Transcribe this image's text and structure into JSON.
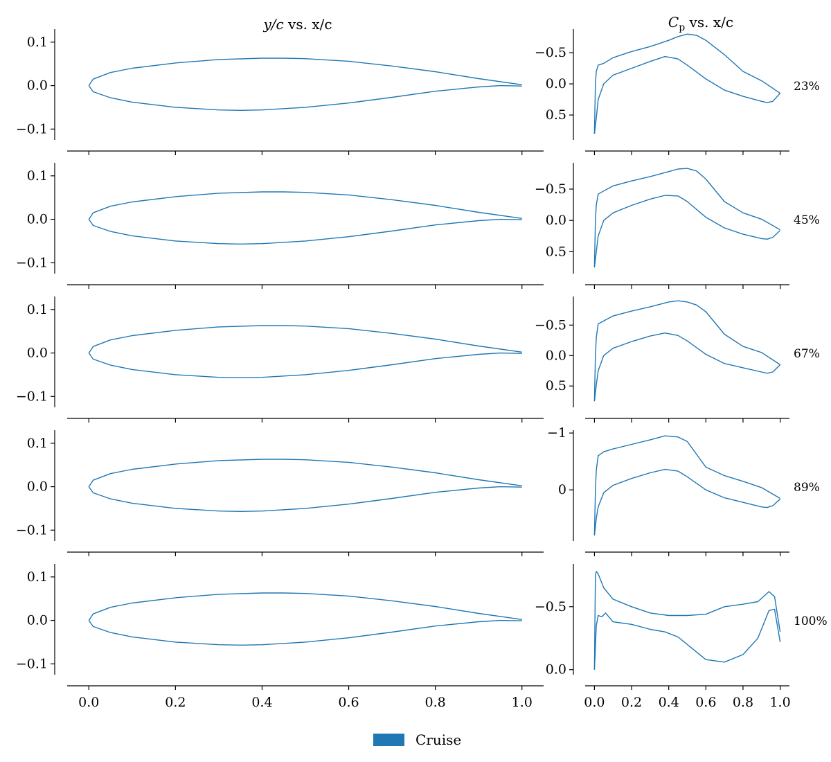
{
  "chart_data": {
    "type": "line",
    "columns": [
      {
        "title_main": "y/c",
        "title_rest": " vs. x/c"
      },
      {
        "title_main": "C",
        "title_sub": "p",
        "title_rest": " vs. x/c"
      }
    ],
    "legend": {
      "label": "Cruise",
      "color": "#1f77b4"
    },
    "line_color": "#1f77b4",
    "x_ticks": [
      0.0,
      0.2,
      0.4,
      0.6,
      0.8,
      1.0
    ],
    "x_tick_labels": [
      "0.0",
      "0.2",
      "0.4",
      "0.6",
      "0.8",
      "1.0"
    ],
    "x_range": [
      -0.05,
      1.05
    ],
    "airfoil": {
      "y_range": [
        -0.125,
        0.13
      ],
      "y_ticks": [
        0.1,
        0.0,
        -0.1
      ],
      "y_tick_labels": [
        "0.1",
        "0.0",
        "−0.1"
      ],
      "upper": [
        [
          0.0,
          0.0
        ],
        [
          0.01,
          0.015
        ],
        [
          0.05,
          0.03
        ],
        [
          0.1,
          0.04
        ],
        [
          0.2,
          0.052
        ],
        [
          0.3,
          0.06
        ],
        [
          0.4,
          0.063
        ],
        [
          0.45,
          0.063
        ],
        [
          0.5,
          0.062
        ],
        [
          0.6,
          0.056
        ],
        [
          0.7,
          0.045
        ],
        [
          0.8,
          0.032
        ],
        [
          0.9,
          0.016
        ],
        [
          1.0,
          0.002
        ]
      ],
      "lower": [
        [
          0.0,
          0.0
        ],
        [
          0.01,
          -0.014
        ],
        [
          0.05,
          -0.028
        ],
        [
          0.1,
          -0.038
        ],
        [
          0.2,
          -0.05
        ],
        [
          0.3,
          -0.056
        ],
        [
          0.35,
          -0.057
        ],
        [
          0.4,
          -0.056
        ],
        [
          0.5,
          -0.05
        ],
        [
          0.6,
          -0.04
        ],
        [
          0.7,
          -0.027
        ],
        [
          0.8,
          -0.013
        ],
        [
          0.9,
          -0.003
        ],
        [
          0.95,
          0.0
        ],
        [
          1.0,
          -0.001
        ]
      ]
    },
    "rows": [
      {
        "span_label": "23%",
        "cp_range": [
          0.9,
          -0.88
        ],
        "cp_ticks": [
          -0.5,
          0.0,
          0.5
        ],
        "cp_tick_labels": [
          "−0.5",
          "0.0",
          "0.5"
        ],
        "upper": [
          [
            0.0,
            0.8
          ],
          [
            0.005,
            0.0
          ],
          [
            0.01,
            -0.2
          ],
          [
            0.02,
            -0.3
          ],
          [
            0.05,
            -0.33
          ],
          [
            0.1,
            -0.42
          ],
          [
            0.2,
            -0.52
          ],
          [
            0.3,
            -0.6
          ],
          [
            0.4,
            -0.7
          ],
          [
            0.45,
            -0.76
          ],
          [
            0.5,
            -0.8
          ],
          [
            0.55,
            -0.78
          ],
          [
            0.6,
            -0.7
          ],
          [
            0.7,
            -0.47
          ],
          [
            0.8,
            -0.2
          ],
          [
            0.9,
            -0.05
          ],
          [
            1.0,
            0.15
          ]
        ],
        "lower": [
          [
            0.0,
            0.8
          ],
          [
            0.01,
            0.55
          ],
          [
            0.02,
            0.25
          ],
          [
            0.05,
            0.0
          ],
          [
            0.1,
            -0.14
          ],
          [
            0.2,
            -0.25
          ],
          [
            0.3,
            -0.36
          ],
          [
            0.38,
            -0.44
          ],
          [
            0.45,
            -0.4
          ],
          [
            0.5,
            -0.3
          ],
          [
            0.6,
            -0.08
          ],
          [
            0.7,
            0.1
          ],
          [
            0.8,
            0.2
          ],
          [
            0.9,
            0.28
          ],
          [
            0.93,
            0.3
          ],
          [
            0.96,
            0.28
          ],
          [
            1.0,
            0.15
          ]
        ]
      },
      {
        "span_label": "45%",
        "cp_range": [
          0.85,
          -0.92
        ],
        "cp_ticks": [
          -0.5,
          0.0,
          0.5
        ],
        "cp_tick_labels": [
          "−0.5",
          "0.0",
          "0.5"
        ],
        "upper": [
          [
            0.0,
            0.75
          ],
          [
            0.005,
            0.0
          ],
          [
            0.01,
            -0.25
          ],
          [
            0.02,
            -0.42
          ],
          [
            0.05,
            -0.47
          ],
          [
            0.1,
            -0.55
          ],
          [
            0.2,
            -0.63
          ],
          [
            0.3,
            -0.7
          ],
          [
            0.4,
            -0.78
          ],
          [
            0.45,
            -0.82
          ],
          [
            0.5,
            -0.83
          ],
          [
            0.55,
            -0.79
          ],
          [
            0.6,
            -0.66
          ],
          [
            0.7,
            -0.3
          ],
          [
            0.8,
            -0.12
          ],
          [
            0.9,
            -0.02
          ],
          [
            1.0,
            0.15
          ]
        ],
        "lower": [
          [
            0.0,
            0.75
          ],
          [
            0.01,
            0.5
          ],
          [
            0.02,
            0.25
          ],
          [
            0.05,
            0.0
          ],
          [
            0.1,
            -0.12
          ],
          [
            0.2,
            -0.24
          ],
          [
            0.3,
            -0.34
          ],
          [
            0.38,
            -0.4
          ],
          [
            0.45,
            -0.39
          ],
          [
            0.5,
            -0.3
          ],
          [
            0.6,
            -0.05
          ],
          [
            0.7,
            0.12
          ],
          [
            0.8,
            0.22
          ],
          [
            0.9,
            0.29
          ],
          [
            0.93,
            0.3
          ],
          [
            0.96,
            0.27
          ],
          [
            1.0,
            0.16
          ]
        ]
      },
      {
        "span_label": "67%",
        "cp_range": [
          0.85,
          -0.97
        ],
        "cp_ticks": [
          -0.5,
          0.0,
          0.5
        ],
        "cp_tick_labels": [
          "−0.5",
          "0.0",
          "0.5"
        ],
        "upper": [
          [
            0.0,
            0.75
          ],
          [
            0.005,
            0.0
          ],
          [
            0.01,
            -0.3
          ],
          [
            0.02,
            -0.52
          ],
          [
            0.05,
            -0.57
          ],
          [
            0.1,
            -0.65
          ],
          [
            0.2,
            -0.73
          ],
          [
            0.3,
            -0.8
          ],
          [
            0.4,
            -0.88
          ],
          [
            0.45,
            -0.9
          ],
          [
            0.5,
            -0.88
          ],
          [
            0.55,
            -0.83
          ],
          [
            0.6,
            -0.72
          ],
          [
            0.7,
            -0.35
          ],
          [
            0.8,
            -0.15
          ],
          [
            0.9,
            -0.05
          ],
          [
            1.0,
            0.15
          ]
        ],
        "lower": [
          [
            0.0,
            0.75
          ],
          [
            0.01,
            0.48
          ],
          [
            0.02,
            0.25
          ],
          [
            0.05,
            0.0
          ],
          [
            0.1,
            -0.12
          ],
          [
            0.2,
            -0.23
          ],
          [
            0.3,
            -0.32
          ],
          [
            0.38,
            -0.37
          ],
          [
            0.45,
            -0.33
          ],
          [
            0.5,
            -0.24
          ],
          [
            0.6,
            -0.02
          ],
          [
            0.7,
            0.13
          ],
          [
            0.8,
            0.2
          ],
          [
            0.9,
            0.27
          ],
          [
            0.93,
            0.29
          ],
          [
            0.96,
            0.27
          ],
          [
            1.0,
            0.15
          ]
        ]
      },
      {
        "span_label": "89%",
        "cp_range": [
          0.9,
          -1.05
        ],
        "cp_ticks": [
          -1,
          0
        ],
        "cp_tick_labels": [
          "−1",
          "0"
        ],
        "upper": [
          [
            0.0,
            0.8
          ],
          [
            0.005,
            0.0
          ],
          [
            0.01,
            -0.35
          ],
          [
            0.02,
            -0.6
          ],
          [
            0.05,
            -0.67
          ],
          [
            0.1,
            -0.72
          ],
          [
            0.2,
            -0.8
          ],
          [
            0.3,
            -0.88
          ],
          [
            0.38,
            -0.95
          ],
          [
            0.45,
            -0.93
          ],
          [
            0.5,
            -0.85
          ],
          [
            0.6,
            -0.4
          ],
          [
            0.7,
            -0.25
          ],
          [
            0.8,
            -0.15
          ],
          [
            0.9,
            -0.04
          ],
          [
            1.0,
            0.15
          ]
        ],
        "lower": [
          [
            0.0,
            0.8
          ],
          [
            0.01,
            0.5
          ],
          [
            0.02,
            0.3
          ],
          [
            0.05,
            0.05
          ],
          [
            0.1,
            -0.08
          ],
          [
            0.2,
            -0.2
          ],
          [
            0.3,
            -0.3
          ],
          [
            0.38,
            -0.36
          ],
          [
            0.45,
            -0.33
          ],
          [
            0.5,
            -0.23
          ],
          [
            0.6,
            0.0
          ],
          [
            0.7,
            0.14
          ],
          [
            0.8,
            0.22
          ],
          [
            0.9,
            0.3
          ],
          [
            0.93,
            0.31
          ],
          [
            0.96,
            0.28
          ],
          [
            1.0,
            0.16
          ]
        ]
      },
      {
        "span_label": "100%",
        "cp_range": [
          0.04,
          -0.84
        ],
        "cp_ticks": [
          -0.5,
          0.0
        ],
        "cp_tick_labels": [
          "−0.5",
          "0.0"
        ],
        "upper": [
          [
            0.0,
            0.0
          ],
          [
            0.005,
            -0.75
          ],
          [
            0.01,
            -0.78
          ],
          [
            0.02,
            -0.76
          ],
          [
            0.05,
            -0.65
          ],
          [
            0.1,
            -0.56
          ],
          [
            0.2,
            -0.5
          ],
          [
            0.3,
            -0.45
          ],
          [
            0.4,
            -0.43
          ],
          [
            0.5,
            -0.43
          ],
          [
            0.6,
            -0.44
          ],
          [
            0.7,
            -0.5
          ],
          [
            0.8,
            -0.52
          ],
          [
            0.88,
            -0.54
          ],
          [
            0.94,
            -0.62
          ],
          [
            0.97,
            -0.58
          ],
          [
            1.0,
            -0.3
          ]
        ],
        "lower": [
          [
            0.0,
            0.0
          ],
          [
            0.01,
            -0.35
          ],
          [
            0.02,
            -0.43
          ],
          [
            0.04,
            -0.42
          ],
          [
            0.06,
            -0.45
          ],
          [
            0.1,
            -0.38
          ],
          [
            0.2,
            -0.36
          ],
          [
            0.3,
            -0.32
          ],
          [
            0.38,
            -0.3
          ],
          [
            0.45,
            -0.26
          ],
          [
            0.55,
            -0.14
          ],
          [
            0.6,
            -0.08
          ],
          [
            0.7,
            -0.06
          ],
          [
            0.8,
            -0.12
          ],
          [
            0.88,
            -0.25
          ],
          [
            0.94,
            -0.47
          ],
          [
            0.97,
            -0.48
          ],
          [
            1.0,
            -0.22
          ]
        ]
      }
    ]
  }
}
